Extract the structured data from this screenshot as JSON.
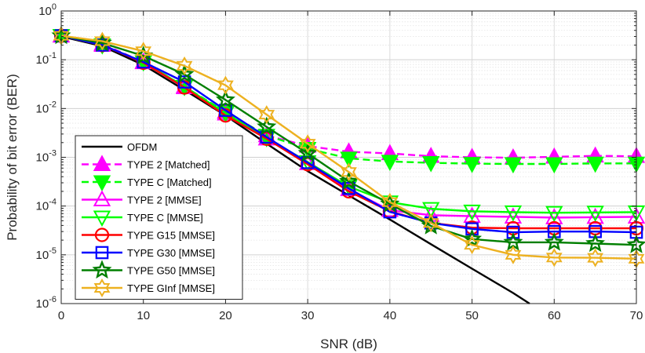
{
  "chart_data": {
    "type": "line",
    "title": "",
    "xlabel": "SNR (dB)",
    "ylabel": "Probability of bit error (BER)",
    "xlim": [
      0,
      70
    ],
    "ylim": [
      1e-06,
      1
    ],
    "yscale": "log",
    "grid": true,
    "legend_position": "left-bottom inside",
    "x_ticks": [
      0,
      10,
      20,
      30,
      40,
      50,
      60,
      70
    ],
    "x_tick_labels": [
      "0",
      "10",
      "20",
      "30",
      "40",
      "50",
      "60",
      "70"
    ],
    "y_ticks": [
      1e-06,
      1e-05,
      0.0001,
      0.001,
      0.01,
      0.1,
      1
    ],
    "y_tick_labels": [
      {
        "base": "10",
        "exp": "-6"
      },
      {
        "base": "10",
        "exp": "-5"
      },
      {
        "base": "10",
        "exp": "-4"
      },
      {
        "base": "10",
        "exp": "-3"
      },
      {
        "base": "10",
        "exp": "-2"
      },
      {
        "base": "10",
        "exp": "-1"
      },
      {
        "base": "10",
        "exp": "0"
      }
    ],
    "series": [
      {
        "name": "OFDM",
        "color": "#000000",
        "dash": "solid",
        "marker": "none",
        "x": [
          0,
          5,
          10,
          15,
          20,
          25,
          30,
          35,
          40,
          45,
          50,
          55,
          57
        ],
        "values": [
          0.3,
          0.19,
          0.078,
          0.024,
          0.0072,
          0.0019,
          0.00052,
          0.000165,
          5.3e-05,
          1.65e-05,
          5.2e-06,
          1.65e-06,
          1e-06
        ]
      },
      {
        "name": "TYPE 2 [Matched]",
        "color": "#ff00ff",
        "dash": "dashed",
        "marker": "triangle-up-filled",
        "x": [
          0,
          5,
          10,
          15,
          20,
          25,
          30,
          35,
          40,
          45,
          50,
          55,
          60,
          65,
          70
        ],
        "values": [
          0.31,
          0.21,
          0.09,
          0.028,
          0.0085,
          0.0028,
          0.0017,
          0.0013,
          0.0012,
          0.00105,
          0.001,
          0.00098,
          0.00102,
          0.00107,
          0.00105
        ]
      },
      {
        "name": "TYPE C [Matched]",
        "color": "#00ff00",
        "dash": "dashed",
        "marker": "triangle-down-filled",
        "x": [
          0,
          5,
          10,
          15,
          20,
          25,
          30,
          35,
          40,
          45,
          50,
          55,
          60,
          65,
          70
        ],
        "values": [
          0.31,
          0.2,
          0.09,
          0.028,
          0.0085,
          0.0028,
          0.0015,
          0.00095,
          0.00082,
          0.00077,
          0.00074,
          0.00073,
          0.00073,
          0.00075,
          0.00075
        ]
      },
      {
        "name": "TYPE 2 [MMSE]",
        "color": "#ff00ff",
        "dash": "solid",
        "marker": "triangle-up",
        "x": [
          0,
          5,
          10,
          15,
          20,
          25,
          30,
          35,
          40,
          45,
          50,
          55,
          60,
          65,
          70
        ],
        "values": [
          0.31,
          0.2,
          0.088,
          0.027,
          0.0078,
          0.0024,
          0.00075,
          0.00022,
          8.2e-05,
          6.5e-05,
          6.2e-05,
          6e-05,
          5.8e-05,
          5.9e-05,
          6e-05
        ]
      },
      {
        "name": "TYPE C [MMSE]",
        "color": "#00ff00",
        "dash": "solid",
        "marker": "triangle-down",
        "x": [
          0,
          5,
          10,
          15,
          20,
          25,
          30,
          35,
          40,
          45,
          50,
          55,
          60,
          65,
          70
        ],
        "values": [
          0.31,
          0.2,
          0.09,
          0.028,
          0.008,
          0.0025,
          0.0008,
          0.00025,
          0.00012,
          8.8e-05,
          7.8e-05,
          7.5e-05,
          7.3e-05,
          7.4e-05,
          7.5e-05
        ]
      },
      {
        "name": "TYPE G15 [MMSE]",
        "color": "#ff0000",
        "dash": "solid",
        "marker": "circle",
        "x": [
          0,
          5,
          10,
          15,
          20,
          25,
          30,
          35,
          40,
          45,
          50,
          55,
          60,
          65,
          70
        ],
        "values": [
          0.31,
          0.2,
          0.087,
          0.027,
          0.0072,
          0.0024,
          0.00072,
          0.0002,
          7.8e-05,
          4.5e-05,
          3.6e-05,
          3.5e-05,
          3.5e-05,
          3.5e-05,
          3.5e-05
        ]
      },
      {
        "name": "TYPE G30 [MMSE]",
        "color": "#0000ff",
        "dash": "solid",
        "marker": "square",
        "x": [
          0,
          5,
          10,
          15,
          20,
          25,
          30,
          35,
          40,
          45,
          50,
          55,
          60,
          65,
          70
        ],
        "values": [
          0.31,
          0.2,
          0.09,
          0.035,
          0.0092,
          0.0026,
          0.00078,
          0.00023,
          7.6e-05,
          4.5e-05,
          3.4e-05,
          2.9e-05,
          3e-05,
          3e-05,
          2.9e-05
        ]
      },
      {
        "name": "TYPE G50 [MMSE]",
        "color": "#007f00",
        "dash": "solid",
        "marker": "star6",
        "x": [
          0,
          5,
          10,
          15,
          20,
          25,
          30,
          35,
          40,
          45,
          50,
          55,
          60,
          65,
          70
        ],
        "values": [
          0.31,
          0.22,
          0.12,
          0.05,
          0.015,
          0.0042,
          0.0012,
          0.00032,
          0.00011,
          3.9e-05,
          2.1e-05,
          1.8e-05,
          1.8e-05,
          1.7e-05,
          1.6e-05
        ]
      },
      {
        "name": "TYPE GInf [MMSE]",
        "color": "#edb120",
        "dash": "solid",
        "marker": "hexagram",
        "x": [
          0,
          5,
          10,
          15,
          20,
          25,
          30,
          35,
          40,
          45,
          50,
          55,
          60,
          65,
          70
        ],
        "values": [
          0.31,
          0.24,
          0.15,
          0.075,
          0.03,
          0.0075,
          0.0019,
          0.0005,
          0.00012,
          4.5e-05,
          1.6e-05,
          1e-05,
          8.8e-06,
          8.7e-06,
          8.3e-06
        ]
      }
    ]
  }
}
